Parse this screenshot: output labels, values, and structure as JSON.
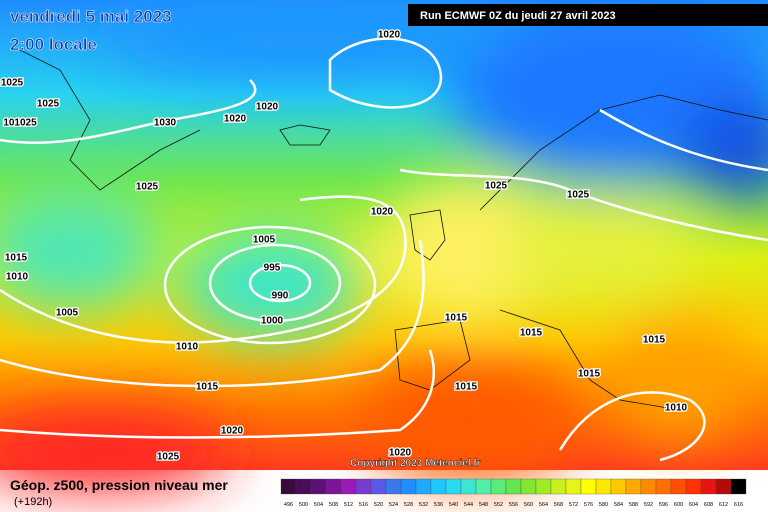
{
  "header": {
    "date": "vendredi 5 mai 2023",
    "time": "2:00 locale",
    "run": "Run ECMWF 0Z du jeudi 27 avril 2023"
  },
  "isobar_labels": [
    "1020",
    "1025",
    "1025",
    "1020",
    "1020",
    "1030",
    "101025",
    "1025",
    "1025",
    "1025",
    "1020",
    "1005",
    "1015",
    "995",
    "1010",
    "990",
    "1005",
    "1015",
    "1000",
    "1015",
    "1015",
    "1010",
    "1015",
    "1015",
    "1015",
    "1010",
    "1020",
    "1020",
    "1025"
  ],
  "copyright": "Copyright 2023 Meteociel.fr",
  "footer": {
    "title": "Géop. z500, pression niveau mer",
    "subtitle": "(+192h)"
  },
  "legend": {
    "labels": [
      "496",
      "500",
      "504",
      "508",
      "512",
      "516",
      "520",
      "524",
      "528",
      "532",
      "536",
      "540",
      "544",
      "548",
      "552",
      "556",
      "560",
      "564",
      "568",
      "572",
      "576",
      "580",
      "584",
      "588",
      "592",
      "596",
      "600",
      "604",
      "608",
      "612",
      "616"
    ],
    "colors": [
      "#3a0a3a",
      "#4b0d5a",
      "#5e1078",
      "#7a1696",
      "#9a1ab4",
      "#7a3ad0",
      "#5a5ae6",
      "#3a78f0",
      "#1e90ff",
      "#1eaaff",
      "#1ec8ff",
      "#28dcf0",
      "#3ce6d2",
      "#50f0aa",
      "#5aeb78",
      "#64e650",
      "#82e632",
      "#a0eb28",
      "#c8f01e",
      "#e6f514",
      "#ffff00",
      "#ffe600",
      "#ffc800",
      "#ffaa00",
      "#ff8c00",
      "#ff6e00",
      "#ff5000",
      "#ff3200",
      "#e61414",
      "#b40a0a",
      "#000000"
    ]
  }
}
